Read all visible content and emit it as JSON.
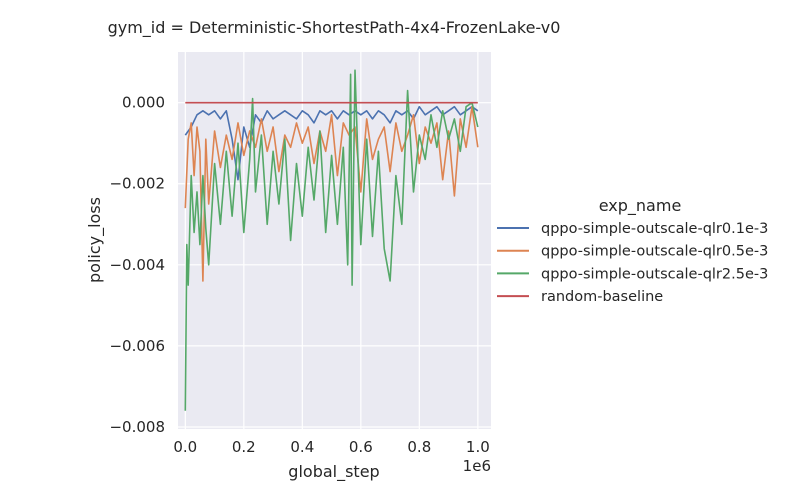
{
  "chart_data": {
    "type": "line",
    "title": "gym_id = Deterministic-ShortestPath-4x4-FrozenLake-v0",
    "xlabel": "global_step",
    "ylabel": "policy_loss",
    "x_offset_label": "1e6",
    "xlim": [
      -0.025,
      1.045
    ],
    "ylim": [
      -0.00805,
      0.00125
    ],
    "x_ticks": [
      0.0,
      0.2,
      0.4,
      0.6,
      0.8,
      1.0
    ],
    "x_tick_labels": [
      "0.0",
      "0.2",
      "0.4",
      "0.6",
      "0.8",
      "1.0"
    ],
    "y_ticks": [
      0.0,
      -0.002,
      -0.004,
      -0.006,
      -0.008
    ],
    "y_tick_labels": [
      "0.000",
      "−0.002",
      "−0.004",
      "−0.006",
      "−0.008"
    ],
    "grid": true,
    "legend_title": "exp_name",
    "legend_position": "right",
    "series": [
      {
        "name": "qppo-simple-outscale-qlr0.1e-3",
        "color": "#4c72b0",
        "x": [
          0.0,
          0.02,
          0.04,
          0.06,
          0.08,
          0.1,
          0.12,
          0.14,
          0.16,
          0.18,
          0.2,
          0.22,
          0.24,
          0.26,
          0.28,
          0.3,
          0.32,
          0.34,
          0.36,
          0.38,
          0.4,
          0.42,
          0.44,
          0.46,
          0.48,
          0.5,
          0.52,
          0.54,
          0.56,
          0.58,
          0.6,
          0.62,
          0.64,
          0.66,
          0.68,
          0.7,
          0.72,
          0.74,
          0.76,
          0.78,
          0.8,
          0.82,
          0.84,
          0.86,
          0.88,
          0.9,
          0.92,
          0.94,
          0.96,
          0.98,
          1.0
        ],
        "y": [
          -0.0008,
          -0.0006,
          -0.0003,
          -0.0002,
          -0.0003,
          -0.0002,
          -0.0004,
          -0.0002,
          -0.0009,
          -0.0019,
          -0.0006,
          -0.0011,
          -0.0003,
          -0.0005,
          -0.0002,
          -0.0004,
          -0.0003,
          -0.0002,
          -0.0003,
          -0.0004,
          -0.0002,
          -0.0003,
          -0.0005,
          -0.0002,
          -0.0003,
          -0.0002,
          -0.0004,
          -0.0002,
          -0.0003,
          -0.0002,
          -0.0003,
          -0.0002,
          -0.0004,
          -0.0002,
          -0.0003,
          -0.0005,
          -0.0002,
          -0.0003,
          -0.0002,
          -0.0004,
          -0.0001,
          -0.0003,
          -0.0002,
          -0.0001,
          -0.0003,
          -0.0002,
          -0.0001,
          -0.0003,
          -0.0002,
          -0.0001,
          -0.0002
        ]
      },
      {
        "name": "qppo-simple-outscale-qlr0.5e-3",
        "color": "#dd8452",
        "x": [
          0.0,
          0.01,
          0.02,
          0.03,
          0.04,
          0.05,
          0.06,
          0.07,
          0.08,
          0.1,
          0.12,
          0.14,
          0.16,
          0.18,
          0.2,
          0.22,
          0.24,
          0.26,
          0.28,
          0.3,
          0.32,
          0.34,
          0.36,
          0.38,
          0.4,
          0.42,
          0.44,
          0.46,
          0.48,
          0.5,
          0.52,
          0.54,
          0.56,
          0.58,
          0.6,
          0.62,
          0.64,
          0.66,
          0.68,
          0.7,
          0.72,
          0.74,
          0.76,
          0.78,
          0.8,
          0.82,
          0.84,
          0.86,
          0.88,
          0.9,
          0.92,
          0.94,
          0.96,
          0.98,
          1.0
        ],
        "y": [
          -0.0026,
          -0.0009,
          -0.0005,
          -0.0018,
          -0.0006,
          -0.0012,
          -0.0044,
          -0.0009,
          -0.0025,
          -0.0007,
          -0.0016,
          -0.0008,
          -0.0014,
          -0.0005,
          -0.0013,
          -0.0007,
          -0.0011,
          -0.0004,
          -0.0012,
          -0.0006,
          -0.0017,
          -0.0008,
          -0.0011,
          -0.0005,
          -0.001,
          -0.0006,
          -0.0015,
          -0.0007,
          -0.0012,
          -0.0003,
          -0.0018,
          -0.0005,
          -0.0008,
          -0.0006,
          -0.0022,
          -0.0004,
          -0.0014,
          -0.0009,
          -0.0006,
          -0.0017,
          -0.0005,
          -0.0012,
          -0.0008,
          -0.0003,
          -0.0015,
          -0.0006,
          -0.001,
          -0.0005,
          -0.0019,
          -0.0007,
          -0.0023,
          -0.0004,
          -0.0011,
          -0.0001,
          -0.0011
        ]
      },
      {
        "name": "qppo-simple-outscale-qlr2.5e-3",
        "color": "#55a868",
        "x": [
          0.0,
          0.005,
          0.01,
          0.02,
          0.03,
          0.04,
          0.05,
          0.06,
          0.07,
          0.08,
          0.1,
          0.12,
          0.14,
          0.16,
          0.18,
          0.2,
          0.22,
          0.23,
          0.24,
          0.26,
          0.28,
          0.3,
          0.32,
          0.34,
          0.36,
          0.38,
          0.4,
          0.42,
          0.44,
          0.46,
          0.48,
          0.5,
          0.52,
          0.54,
          0.555,
          0.565,
          0.57,
          0.58,
          0.6,
          0.62,
          0.64,
          0.66,
          0.68,
          0.7,
          0.72,
          0.74,
          0.76,
          0.78,
          0.8,
          0.82,
          0.84,
          0.86,
          0.88,
          0.9,
          0.92,
          0.94,
          0.96,
          0.98,
          1.0
        ],
        "y": [
          -0.0076,
          -0.0035,
          -0.0045,
          -0.0018,
          -0.0032,
          -0.0022,
          -0.0035,
          -0.0018,
          -0.0031,
          -0.004,
          -0.0015,
          -0.003,
          -0.0012,
          -0.0028,
          -0.001,
          -0.0032,
          -0.0014,
          0.0001,
          -0.0022,
          -0.0008,
          -0.003,
          -0.0012,
          -0.0025,
          -0.0009,
          -0.0034,
          -0.0015,
          -0.0028,
          -0.0011,
          -0.0024,
          -0.0007,
          -0.0032,
          -0.0013,
          -0.003,
          -0.0011,
          -0.004,
          0.0007,
          -0.0045,
          0.0008,
          -0.0035,
          -0.0009,
          -0.0033,
          -0.0012,
          -0.0036,
          -0.0044,
          -0.0018,
          -0.003,
          0.0003,
          -0.0022,
          -0.0008,
          -0.0014,
          -0.0003,
          -0.0011,
          -0.0002,
          -0.0009,
          -0.0004,
          -0.0012,
          -0.0001,
          0.0,
          -0.0006
        ]
      },
      {
        "name": "random-baseline",
        "color": "#c44e52",
        "x": [
          0.0,
          1.0
        ],
        "y": [
          0.0,
          0.0
        ]
      }
    ]
  }
}
